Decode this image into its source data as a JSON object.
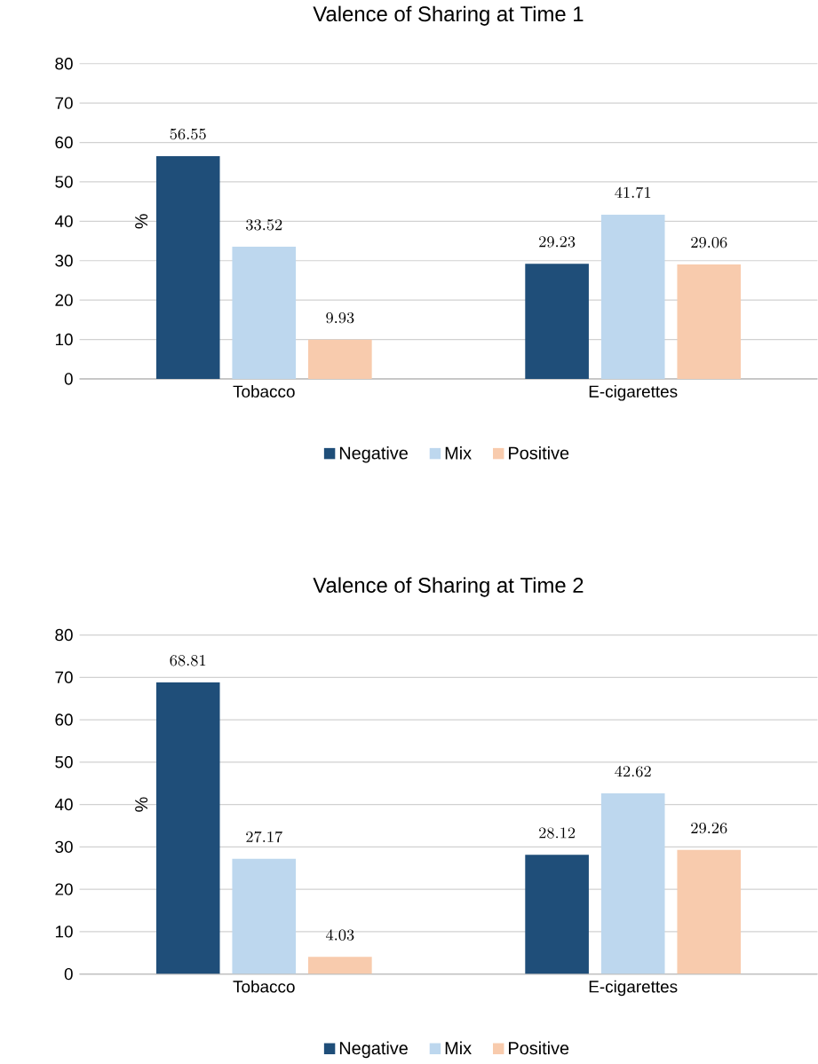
{
  "chart_data": [
    {
      "type": "bar",
      "title": "Valence of Sharing at Time 1",
      "ylabel": "%",
      "categories": [
        "Tobacco",
        "E-cigarettes"
      ],
      "series": [
        {
          "name": "Negative",
          "color": "#1f4e79",
          "values": [
            56.55,
            29.23
          ]
        },
        {
          "name": "Mix",
          "color": "#bdd7ee",
          "values": [
            33.52,
            41.71
          ]
        },
        {
          "name": "Positive",
          "color": "#f8cbad",
          "values": [
            9.93,
            29.06
          ]
        }
      ],
      "ylim": [
        0,
        80
      ],
      "yticks": [
        0,
        10,
        20,
        30,
        40,
        50,
        60,
        70,
        80
      ],
      "grid": "y",
      "legend": "bottom",
      "data_labels": true
    },
    {
      "type": "bar",
      "title": "Valence of Sharing at Time 2",
      "ylabel": "%",
      "categories": [
        "Tobacco",
        "E-cigarettes"
      ],
      "series": [
        {
          "name": "Negative",
          "color": "#1f4e79",
          "values": [
            68.81,
            28.12
          ]
        },
        {
          "name": "Mix",
          "color": "#bdd7ee",
          "values": [
            27.17,
            42.62
          ]
        },
        {
          "name": "Positive",
          "color": "#f8cbad",
          "values": [
            4.03,
            29.26
          ]
        }
      ],
      "ylim": [
        0,
        80
      ],
      "yticks": [
        0,
        10,
        20,
        30,
        40,
        50,
        60,
        70,
        80
      ],
      "grid": "y",
      "legend": "bottom",
      "data_labels": true
    }
  ]
}
